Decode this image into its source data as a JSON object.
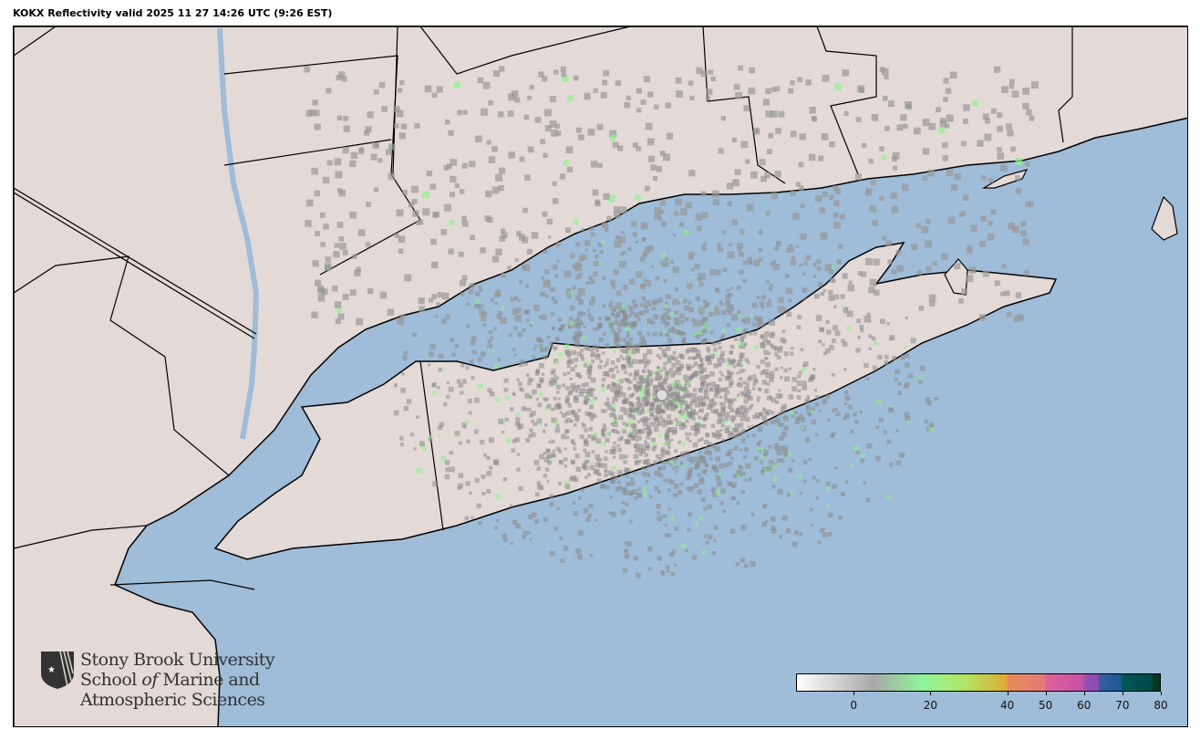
{
  "title": "KOKX Reflectivity valid 2025 11 27 14:26 UTC (9:26 EST)",
  "colors": {
    "water": "#9fbcd8",
    "land": "#e3d9d7",
    "radar_weak": "#8a8a8a",
    "radar_green": "#8ef28a"
  },
  "radar_site": "KOKX",
  "logo": {
    "line1": "Stony Brook University",
    "line2a": "School ",
    "line2b": "of",
    "line2c": " Marine and",
    "line3": "Atmospheric Sciences"
  },
  "colorbar": {
    "units_range": [
      -15,
      80
    ],
    "ticks": [
      0,
      20,
      40,
      50,
      60,
      70,
      80
    ],
    "stops": [
      {
        "v": -15,
        "c": "#ffffff"
      },
      {
        "v": 5,
        "c": "#a8a8a8"
      },
      {
        "v": 18,
        "c": "#8ef59a"
      },
      {
        "v": 30,
        "c": "#b4e260"
      },
      {
        "v": 40,
        "c": "#e2a832"
      },
      {
        "v": 40.1,
        "c": "#e48c5a"
      },
      {
        "v": 50,
        "c": "#e47a78"
      },
      {
        "v": 50.1,
        "c": "#de6298"
      },
      {
        "v": 60,
        "c": "#c850a8"
      },
      {
        "v": 60.1,
        "c": "#9a50b0"
      },
      {
        "v": 64,
        "c": "#8a4cb0"
      },
      {
        "v": 64.1,
        "c": "#3a5ca0"
      },
      {
        "v": 70,
        "c": "#1a5a90"
      },
      {
        "v": 70.1,
        "c": "#005858"
      },
      {
        "v": 78,
        "c": "#004a48"
      },
      {
        "v": 78.1,
        "c": "#003820"
      },
      {
        "v": 80,
        "c": "#003820"
      }
    ]
  }
}
